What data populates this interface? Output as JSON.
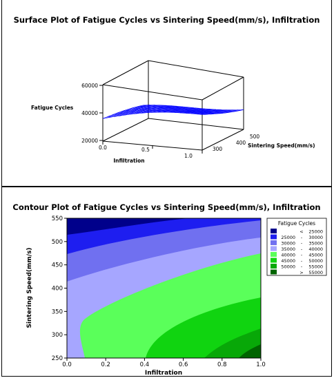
{
  "chart_data": [
    {
      "type": "surface",
      "title": "Surface Plot of Fatigue Cycles vs Sintering Speed(mm/s), Infiltration",
      "zlabel": "Fatigue Cycles",
      "xlabel": "Infiltration",
      "ylabel": "Sintering Speed(mm/s)",
      "z_ticks": [
        "20000",
        "40000",
        "60000"
      ],
      "x_ticks": [
        "0.0",
        "0.5",
        "1.0"
      ],
      "y_ticks": [
        "300",
        "400",
        "500"
      ],
      "xlim": [
        0,
        1
      ],
      "ylim": [
        250,
        550
      ],
      "zlim": [
        20000,
        60000
      ],
      "mesh_color": "#0000ff"
    },
    {
      "type": "contour",
      "title": "Contour Plot of Fatigue Cycles vs Sintering Speed(mm/s), Infiltration",
      "xlabel": "Infiltration",
      "ylabel": "Sintering Speed(mm/s)",
      "xlim": [
        0,
        1
      ],
      "ylim": [
        250,
        550
      ],
      "x_ticks": [
        "0.0",
        "0.2",
        "0.4",
        "0.6",
        "0.8",
        "1.0"
      ],
      "y_ticks": [
        "250",
        "300",
        "350",
        "400",
        "450",
        "500",
        "550"
      ],
      "legend_title": "Fatigue Cycles",
      "legend_position": "right",
      "levels": [
        {
          "op": "<",
          "lo": "",
          "hi": "25000",
          "color": "#00008b"
        },
        {
          "op": "-",
          "lo": "25000",
          "hi": "30000",
          "color": "#1e1ef0"
        },
        {
          "op": "-",
          "lo": "30000",
          "hi": "35000",
          "color": "#7070f0"
        },
        {
          "op": "-",
          "lo": "35000",
          "hi": "40000",
          "color": "#a6a6ff"
        },
        {
          "op": "-",
          "lo": "40000",
          "hi": "45000",
          "color": "#5aff5a"
        },
        {
          "op": "-",
          "lo": "45000",
          "hi": "50000",
          "color": "#10d410"
        },
        {
          "op": "-",
          "lo": "50000",
          "hi": "55000",
          "color": "#08a808"
        },
        {
          "op": ">",
          "lo": "",
          "hi": "55000",
          "color": "#006400"
        }
      ]
    }
  ]
}
